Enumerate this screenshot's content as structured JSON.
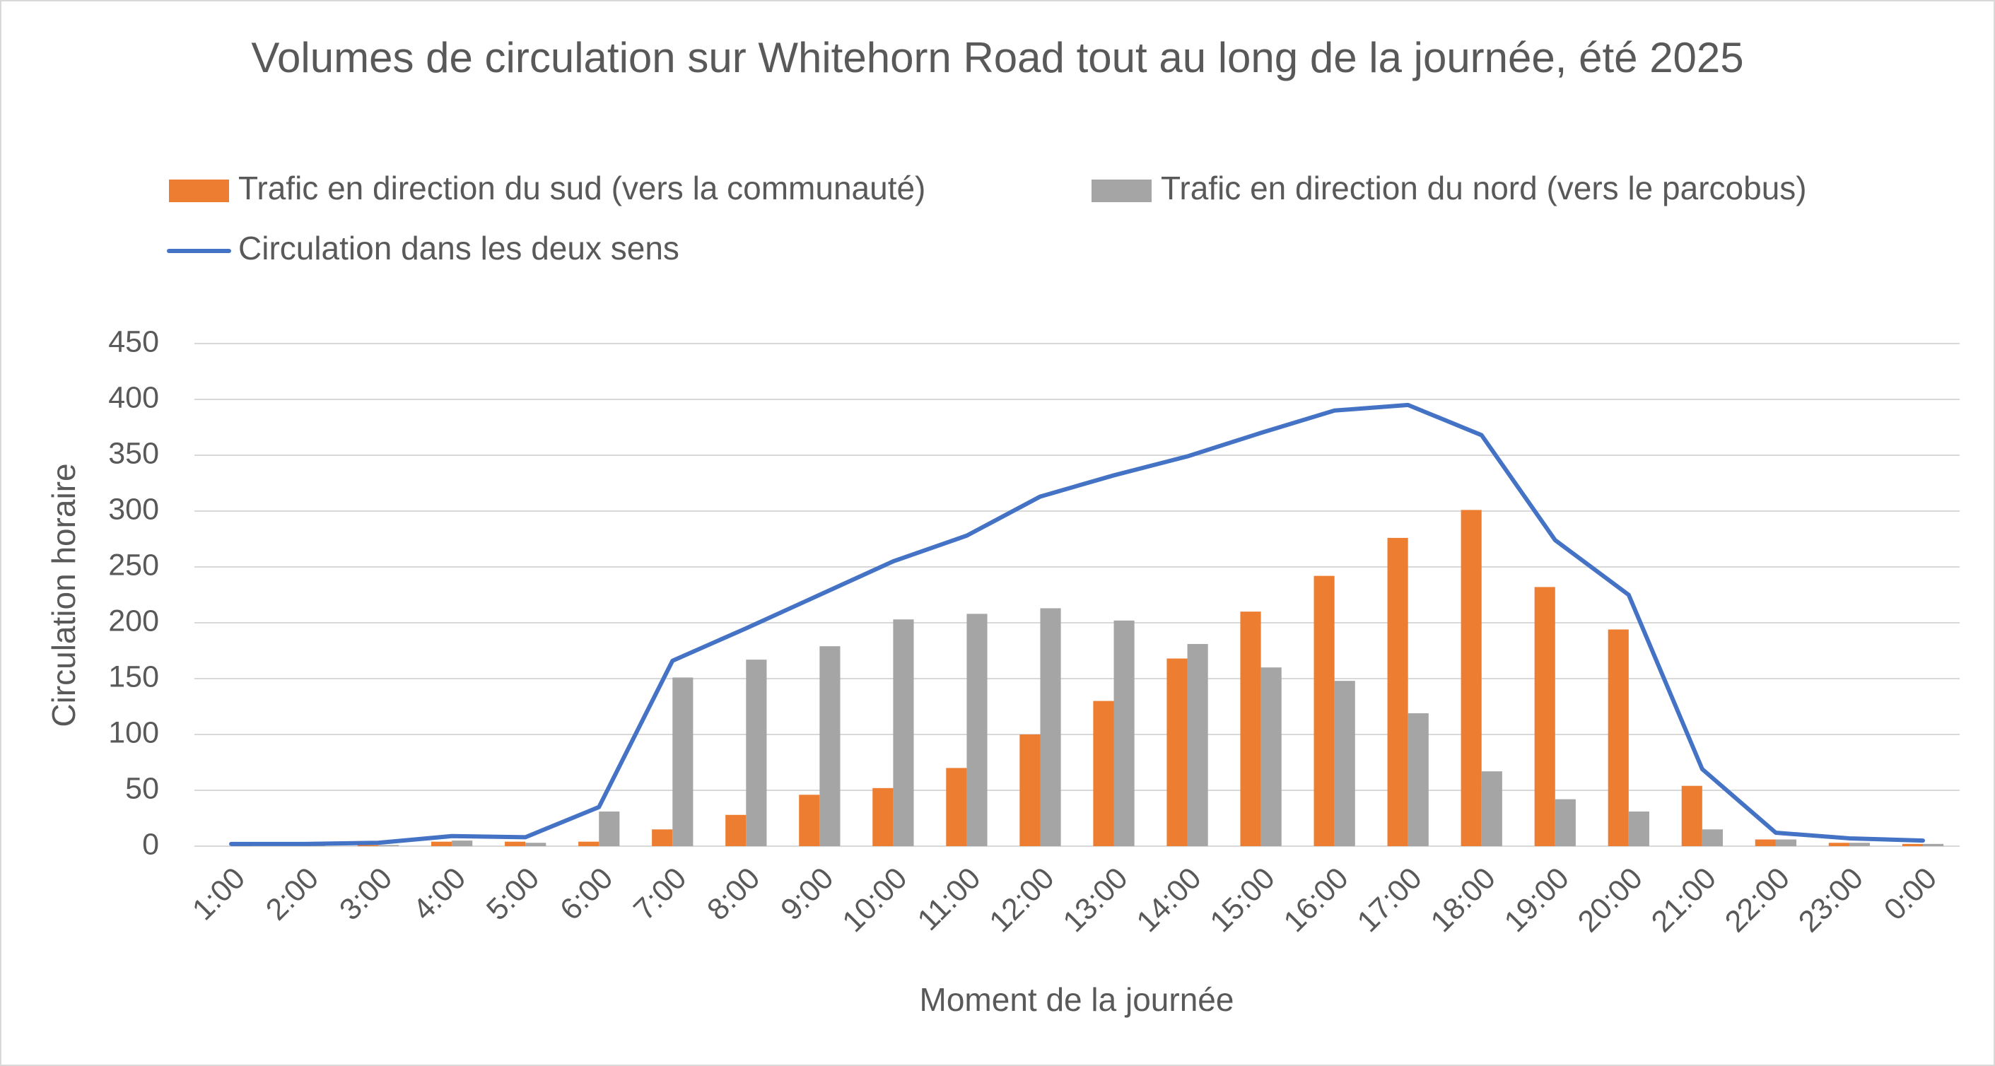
{
  "chart_data": {
    "type": "bar-line",
    "title": "Volumes de circulation sur Whitehorn Road tout au long de la journée, été 2025",
    "x_label": "Moment de la journée",
    "y_label": "Circulation horaire",
    "categories": [
      "1:00",
      "2:00",
      "3:00",
      "4:00",
      "5:00",
      "6:00",
      "7:00",
      "8:00",
      "9:00",
      "10:00",
      "11:00",
      "12:00",
      "13:00",
      "14:00",
      "15:00",
      "16:00",
      "17:00",
      "18:00",
      "19:00",
      "20:00",
      "21:00",
      "22:00",
      "23:00",
      "0:00"
    ],
    "series": [
      {
        "name": "Trafic en direction du sud (vers la communauté)",
        "type": "bar",
        "color": "#ed7d31",
        "values": [
          0,
          0,
          1,
          4,
          4,
          4,
          15,
          28,
          46,
          52,
          70,
          100,
          130,
          168,
          210,
          242,
          276,
          301,
          232,
          194,
          54,
          6,
          3,
          2
        ]
      },
      {
        "name": "Trafic en direction du nord (vers le parcobus)",
        "type": "bar",
        "color": "#a5a5a5",
        "values": [
          1,
          1,
          1,
          5,
          3,
          31,
          151,
          167,
          179,
          203,
          208,
          213,
          202,
          181,
          160,
          148,
          119,
          67,
          42,
          31,
          15,
          6,
          3,
          2
        ]
      },
      {
        "name": "Circulation dans les deux sens",
        "type": "line",
        "color": "#4472c4",
        "values": [
          2,
          2,
          3,
          9,
          8,
          35,
          166,
          195,
          225,
          255,
          278,
          313,
          332,
          349,
          370,
          390,
          395,
          368,
          274,
          225,
          69,
          12,
          7,
          5
        ]
      }
    ],
    "ylim": [
      0,
      450
    ],
    "yticks": [
      0,
      50,
      100,
      150,
      200,
      250,
      300,
      350,
      400,
      450
    ],
    "grid": true
  }
}
